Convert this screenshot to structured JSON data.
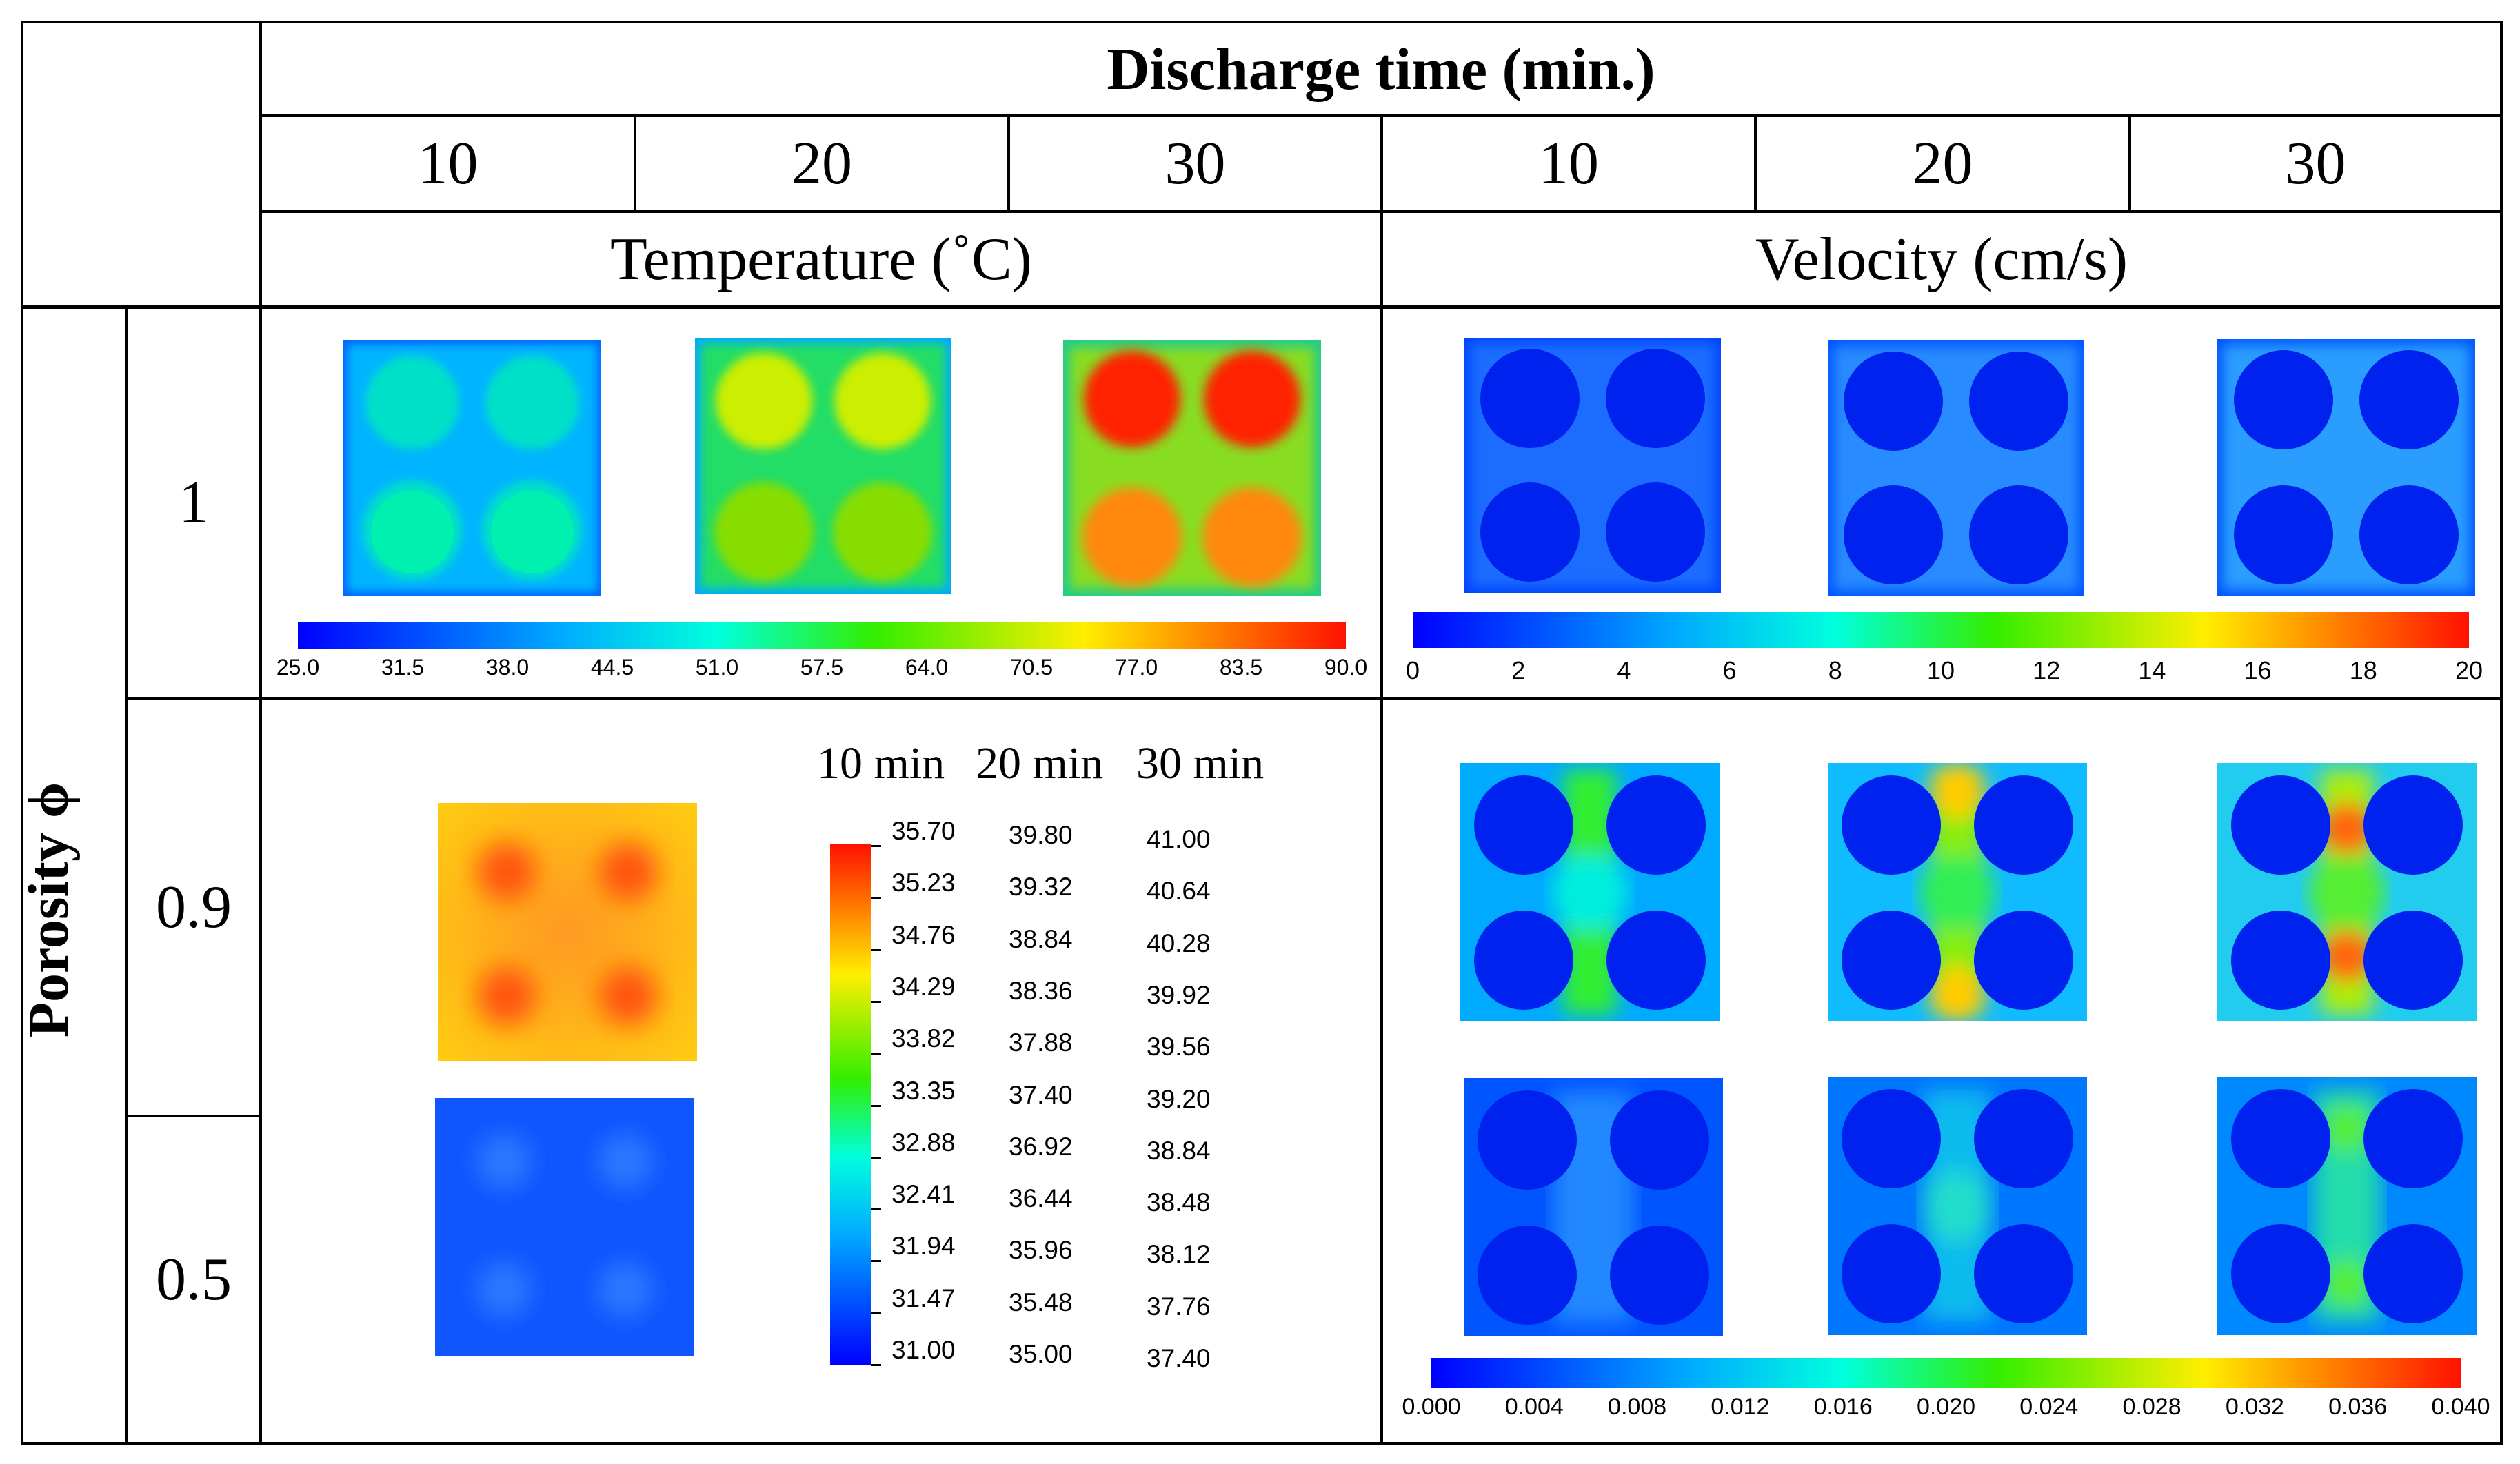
{
  "header": {
    "title": "Discharge time (min.)",
    "times": [
      "10",
      "20",
      "30",
      "10",
      "20",
      "30"
    ],
    "temperature_label": "Temperature (˚C)",
    "velocity_label": "Velocity (cm/s)"
  },
  "rows": {
    "porosity_label": "Porosity ϕ",
    "values": [
      "1",
      "0.9",
      "0.5"
    ]
  },
  "temperature_colorbar_phi1": {
    "ticks": [
      "25.0",
      "31.5",
      "38.0",
      "44.5",
      "51.0",
      "57.5",
      "64.0",
      "70.5",
      "77.0",
      "83.5",
      "90.0"
    ]
  },
  "velocity_colorbar_phi1": {
    "ticks": [
      "0",
      "2",
      "4",
      "6",
      "8",
      "10",
      "12",
      "14",
      "16",
      "18",
      "20"
    ]
  },
  "velocity_colorbar_porous": {
    "ticks": [
      "0.000",
      "0.004",
      "0.008",
      "0.012",
      "0.016",
      "0.020",
      "0.024",
      "0.028",
      "0.032",
      "0.036",
      "0.040"
    ]
  },
  "porous_temperature_legend": {
    "time_headers": [
      "10 min",
      "20 min",
      "30 min"
    ],
    "col_10": [
      "35.70",
      "35.23",
      "34.76",
      "34.29",
      "33.82",
      "33.35",
      "32.88",
      "32.41",
      "31.94",
      "31.47",
      "31.00"
    ],
    "col_20": [
      "39.80",
      "39.32",
      "38.84",
      "38.36",
      "37.88",
      "37.40",
      "36.92",
      "36.44",
      "35.96",
      "35.48",
      "35.00"
    ],
    "col_30": [
      "41.00",
      "40.64",
      "40.28",
      "39.92",
      "39.56",
      "39.20",
      "38.84",
      "38.48",
      "38.12",
      "37.76",
      "37.40"
    ]
  },
  "colors": {
    "jet_blue": "#0033ff",
    "jet_cyan": "#00ffee",
    "jet_green": "#33ee00",
    "jet_yellow": "#ffee00",
    "jet_red": "#ff1a00"
  }
}
